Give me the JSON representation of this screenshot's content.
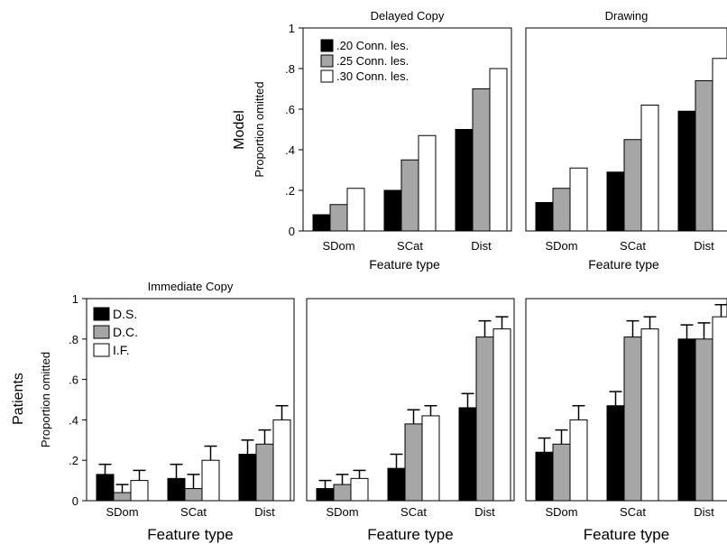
{
  "figure": {
    "row_labels": {
      "model": "Model",
      "patients": "Patients"
    },
    "xlabel": "Feature type",
    "ylabel": "Proportion omitted",
    "categories": [
      "SDom",
      "SCat",
      "Dist"
    ],
    "yticks": [
      "0",
      ".2",
      ".4",
      ".6",
      ".8",
      "1"
    ],
    "colors": {
      "black": "#000000",
      "gray": "#a6a6a6",
      "white": "#ffffff",
      "axis": "#000000"
    }
  },
  "chart_data": [
    {
      "type": "bar",
      "title": "Delayed Copy",
      "row": "Model",
      "xlabel": "Feature type",
      "ylabel": "Proportion omitted",
      "categories": [
        "SDom",
        "SCat",
        "Dist"
      ],
      "ylim": [
        0,
        1
      ],
      "legend": "top-left",
      "series": [
        {
          "name": ".20 Conn. les.",
          "values": [
            0.08,
            0.2,
            0.5
          ]
        },
        {
          "name": ".25 Conn. les.",
          "values": [
            0.13,
            0.35,
            0.7
          ]
        },
        {
          "name": ".30 Conn. les.",
          "values": [
            0.21,
            0.47,
            0.8
          ]
        }
      ]
    },
    {
      "type": "bar",
      "title": "Drawing",
      "row": "Model",
      "xlabel": "Feature type",
      "ylabel": "",
      "categories": [
        "SDom",
        "SCat",
        "Dist"
      ],
      "ylim": [
        0,
        1
      ],
      "series": [
        {
          "values": [
            0.14,
            0.29,
            0.59
          ]
        },
        {
          "values": [
            0.21,
            0.45,
            0.74
          ]
        },
        {
          "values": [
            0.31,
            0.62,
            0.85
          ]
        }
      ]
    },
    {
      "type": "bar",
      "title": "Immediate Copy",
      "row": "Patients",
      "xlabel": "Feature type",
      "ylabel": "Proportion omitted",
      "categories": [
        "SDom",
        "SCat",
        "Dist"
      ],
      "ylim": [
        0,
        1
      ],
      "legend": "top-left",
      "series": [
        {
          "name": "D.S.",
          "values": [
            0.13,
            0.11,
            0.23
          ],
          "errors": [
            0.05,
            0.07,
            0.07
          ]
        },
        {
          "name": "D.C.",
          "values": [
            0.04,
            0.06,
            0.28
          ],
          "errors": [
            0.04,
            0.07,
            0.07
          ]
        },
        {
          "name": "I.F.",
          "values": [
            0.1,
            0.2,
            0.4
          ],
          "errors": [
            0.05,
            0.07,
            0.07
          ]
        }
      ]
    },
    {
      "type": "bar",
      "title": "",
      "row": "Patients",
      "xlabel": "Feature type",
      "ylabel": "",
      "categories": [
        "SDom",
        "SCat",
        "Dist"
      ],
      "ylim": [
        0,
        1
      ],
      "series": [
        {
          "values": [
            0.06,
            0.16,
            0.46
          ],
          "errors": [
            0.04,
            0.07,
            0.07
          ]
        },
        {
          "values": [
            0.08,
            0.38,
            0.81
          ],
          "errors": [
            0.05,
            0.07,
            0.08
          ]
        },
        {
          "values": [
            0.11,
            0.42,
            0.85
          ],
          "errors": [
            0.04,
            0.05,
            0.06
          ]
        }
      ]
    },
    {
      "type": "bar",
      "title": "",
      "row": "Patients",
      "xlabel": "Feature type",
      "ylabel": "",
      "categories": [
        "SDom",
        "SCat",
        "Dist"
      ],
      "ylim": [
        0,
        1
      ],
      "series": [
        {
          "values": [
            0.24,
            0.47,
            0.8
          ],
          "errors": [
            0.07,
            0.07,
            0.07
          ]
        },
        {
          "values": [
            0.28,
            0.81,
            0.8
          ],
          "errors": [
            0.07,
            0.08,
            0.08
          ]
        },
        {
          "values": [
            0.4,
            0.85,
            0.91
          ],
          "errors": [
            0.07,
            0.06,
            0.06
          ]
        }
      ]
    }
  ]
}
